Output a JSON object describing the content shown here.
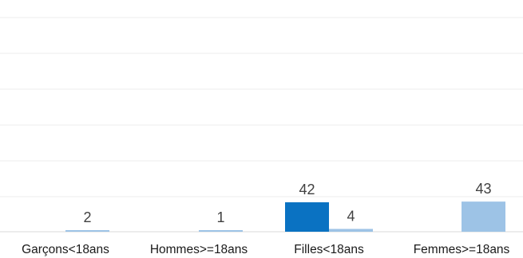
{
  "chart_data": {
    "type": "bar",
    "categories": [
      "Garçons<18ans",
      "Hommes>=18ans",
      "Filles<18ans",
      "Femmes>=18ans"
    ],
    "series": [
      {
        "values": [
          null,
          null,
          42,
          null
        ],
        "color": "#0a72c2"
      },
      {
        "values": [
          2,
          1,
          4,
          43
        ],
        "color": "#9dc3e6"
      }
    ],
    "ylim": [
      0,
      60
    ],
    "gridlines": true,
    "data_labels": [
      "2",
      "1",
      "42",
      "4",
      "43"
    ]
  }
}
